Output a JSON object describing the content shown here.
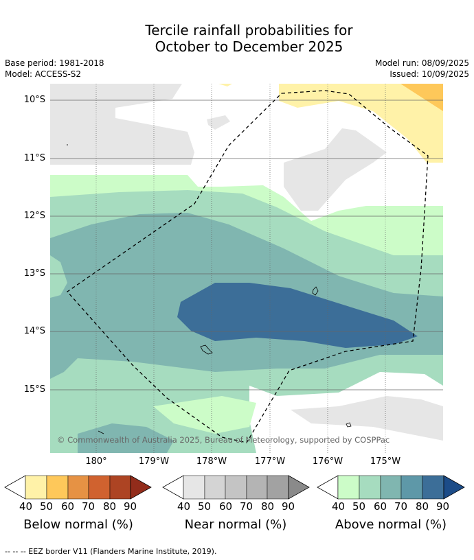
{
  "title_line1": "Tercile rainfall probabilities for",
  "title_line2": "October to December 2025",
  "meta": {
    "base_period": "Base period: 1981-2018",
    "model": "Model: ACCESS-S2",
    "model_run": "Model run: 08/09/2025",
    "issued": "Issued: 10/09/2025"
  },
  "map": {
    "lat_labels": [
      "10°S",
      "11°S",
      "12°S",
      "13°S",
      "14°S",
      "15°S"
    ],
    "lon_labels": [
      "180°",
      "179°W",
      "178°W",
      "177°W",
      "176°W",
      "175°W"
    ],
    "copyright": "© Commonwealth of Australia 2025, Bureau of Meteorology, supported by COSPPac"
  },
  "colorbars": [
    {
      "title": "Below normal (%)",
      "ticks": [
        "40",
        "50",
        "60",
        "70",
        "80",
        "90"
      ],
      "colors": [
        "#fff2a8",
        "#fec85a",
        "#e69244",
        "#d0622f",
        "#ad4423",
        "#922c1b"
      ]
    },
    {
      "title": "Near normal (%)",
      "ticks": [
        "40",
        "50",
        "60",
        "70",
        "80",
        "90"
      ],
      "colors": [
        "#e6e6e6",
        "#d4d4d4",
        "#c4c4c4",
        "#b4b4b4",
        "#a2a2a2",
        "#8a8a8a"
      ]
    },
    {
      "title": "Above normal (%)",
      "ticks": [
        "40",
        "50",
        "60",
        "70",
        "80",
        "90"
      ],
      "colors": [
        "#ccfcc8",
        "#a6dcbf",
        "#80b6b0",
        "#5e98a8",
        "#3c6e98",
        "#1c4c88"
      ]
    }
  ],
  "footnote": "-- -- -- EEZ border V11 (Flanders Marine Institute, 2019)."
}
